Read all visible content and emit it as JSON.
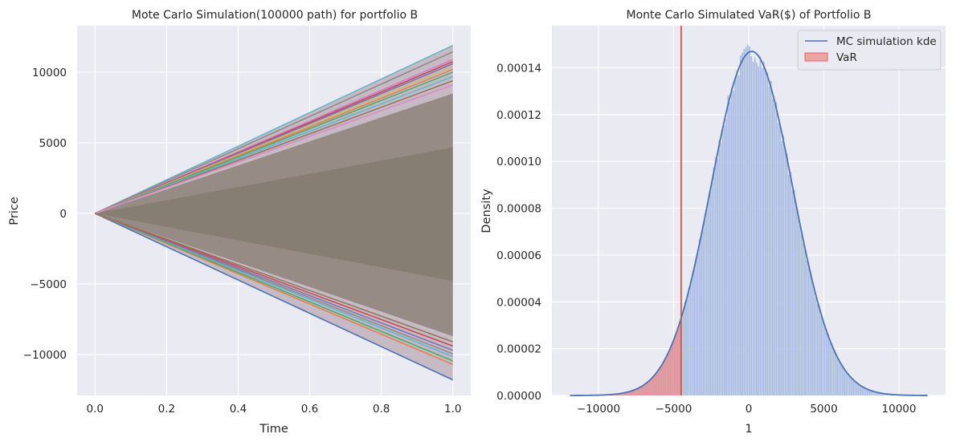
{
  "chart_data": [
    {
      "type": "line",
      "title": "Mote Carlo Simulation(100000 path) for portfolio B",
      "xlabel": "Time",
      "ylabel": "Price",
      "xlim": [
        -0.05,
        1.05
      ],
      "ylim": [
        -12900,
        13300
      ],
      "x_ticks": [
        0.0,
        0.2,
        0.4,
        0.6,
        0.8,
        1.0
      ],
      "x_tick_labels": [
        "0.0",
        "0.2",
        "0.4",
        "0.6",
        "0.8",
        "1.0"
      ],
      "y_ticks": [
        -10000,
        -5000,
        0,
        5000,
        10000
      ],
      "y_tick_labels": [
        "−10000",
        "−5000",
        "0",
        "5000",
        "10000"
      ],
      "grid": true,
      "x": [
        0.0,
        1.0
      ],
      "fan_envelope": {
        "upper": 11900,
        "lower": -11800,
        "dense_upper": 8500,
        "dense_lower": -8700
      },
      "extreme_paths": [
        {
          "color": "#6bb6c5",
          "values": [
            0,
            11900
          ]
        },
        {
          "color": "#8c8c8c",
          "values": [
            0,
            11450
          ]
        },
        {
          "color": "#d27fc9",
          "values": [
            0,
            10900
          ]
        },
        {
          "color": "#c44e52",
          "values": [
            0,
            10750
          ]
        },
        {
          "color": "#8172b3",
          "values": [
            0,
            10600
          ]
        },
        {
          "color": "#ccb974",
          "values": [
            0,
            10400
          ]
        },
        {
          "color": "#dd8452",
          "values": [
            0,
            10200
          ]
        },
        {
          "color": "#55a868",
          "values": [
            0,
            10000
          ]
        },
        {
          "color": "#64b5cd",
          "values": [
            0,
            9700
          ]
        },
        {
          "color": "#937860",
          "values": [
            0,
            9400
          ]
        },
        {
          "color": "#da8bc3",
          "values": [
            0,
            9100
          ]
        },
        {
          "color": "#4c72b0",
          "values": [
            0,
            -11800
          ]
        },
        {
          "color": "#dd8452",
          "values": [
            0,
            -10700
          ]
        },
        {
          "color": "#55a868",
          "values": [
            0,
            -10450
          ]
        },
        {
          "color": "#64b5cd",
          "values": [
            0,
            -10150
          ]
        },
        {
          "color": "#8c8c8c",
          "values": [
            0,
            -9950
          ]
        },
        {
          "color": "#8172b3",
          "values": [
            0,
            -9700
          ]
        },
        {
          "color": "#c44e52",
          "values": [
            0,
            -9400
          ]
        },
        {
          "color": "#937860",
          "values": [
            0,
            -9100
          ]
        }
      ]
    },
    {
      "type": "histogram",
      "title": "Monte Carlo Simulated VaR($) of Portfolio B",
      "xlabel": "1",
      "ylabel": "Density",
      "xlim": [
        -13100,
        13100
      ],
      "ylim": [
        0,
        0.000158
      ],
      "x_ticks": [
        -10000,
        -5000,
        0,
        5000,
        10000
      ],
      "x_tick_labels": [
        "−10000",
        "−5000",
        "0",
        "5000",
        "10000"
      ],
      "y_ticks": [
        0,
        2e-05,
        4e-05,
        6e-05,
        8e-05,
        0.0001,
        0.00012,
        0.00014
      ],
      "y_tick_labels": [
        "0.00000",
        "0.00002",
        "0.00004",
        "0.00006",
        "0.00008",
        "0.00010",
        "0.00012",
        "0.00014"
      ],
      "grid": true,
      "distribution": {
        "mean": 200,
        "std": 2720,
        "peak_density": 0.000147,
        "range": [
          -11900,
          11900
        ]
      },
      "var_threshold": -4500,
      "legend": {
        "placement": "top-right",
        "entries": [
          "MC simulation kde",
          "VaR"
        ]
      },
      "colors": {
        "kde": "#4c72b0",
        "histogram": "#a8bce0",
        "var_fill": "#ee8c8c",
        "var_line": "#e8503a"
      }
    }
  ]
}
